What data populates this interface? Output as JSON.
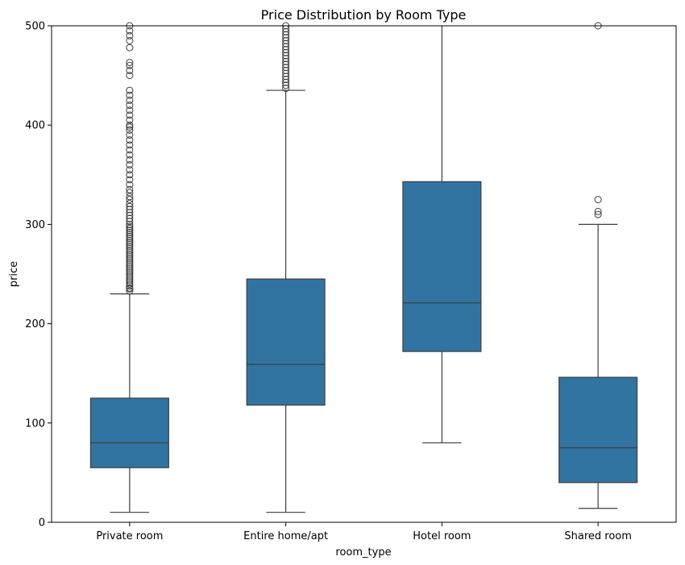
{
  "chart_data": {
    "type": "box",
    "title": "Price Distribution by Room Type",
    "xlabel": "room_type",
    "ylabel": "price",
    "ylim": [
      0,
      500
    ],
    "yticks": [
      0,
      100,
      200,
      300,
      400,
      500
    ],
    "grid": false,
    "legend": "none",
    "box_color": "#3274a1",
    "line_color": "#3d3d3d",
    "categories": [
      "Private room",
      "Entire home/apt",
      "Hotel room",
      "Shared room"
    ],
    "boxes": [
      {
        "category": "Private room",
        "whisker_low": 10,
        "q1": 55,
        "median": 80,
        "q3": 125,
        "whisker_high": 230,
        "outliers": [
          233,
          235,
          236,
          238,
          240,
          242,
          244,
          246,
          248,
          250,
          252,
          254,
          256,
          258,
          260,
          262,
          264,
          266,
          268,
          270,
          272,
          274,
          276,
          278,
          280,
          282,
          284,
          286,
          288,
          290,
          292,
          294,
          296,
          298,
          300,
          303,
          306,
          309,
          312,
          315,
          318,
          321,
          325,
          328,
          332,
          335,
          340,
          345,
          350,
          355,
          360,
          365,
          370,
          375,
          380,
          385,
          390,
          395,
          398,
          400,
          405,
          410,
          415,
          420,
          425,
          430,
          435,
          450,
          455,
          460,
          463,
          478,
          485,
          490,
          495,
          500
        ]
      },
      {
        "category": "Entire home/apt",
        "whisker_low": 10,
        "q1": 118,
        "median": 159,
        "q3": 245,
        "whisker_high": 435,
        "outliers": [
          437,
          440,
          443,
          446,
          449,
          452,
          455,
          458,
          461,
          464,
          467,
          470,
          473,
          476,
          479,
          482,
          485,
          488,
          491,
          494,
          497,
          500
        ]
      },
      {
        "category": "Hotel room",
        "whisker_low": 80,
        "q1": 172,
        "median": 221,
        "q3": 343,
        "whisker_high": 500,
        "outliers": []
      },
      {
        "category": "Shared room",
        "whisker_low": 14,
        "q1": 40,
        "median": 75,
        "q3": 146,
        "whisker_high": 300,
        "outliers": [
          310,
          313,
          325,
          500
        ]
      }
    ]
  }
}
